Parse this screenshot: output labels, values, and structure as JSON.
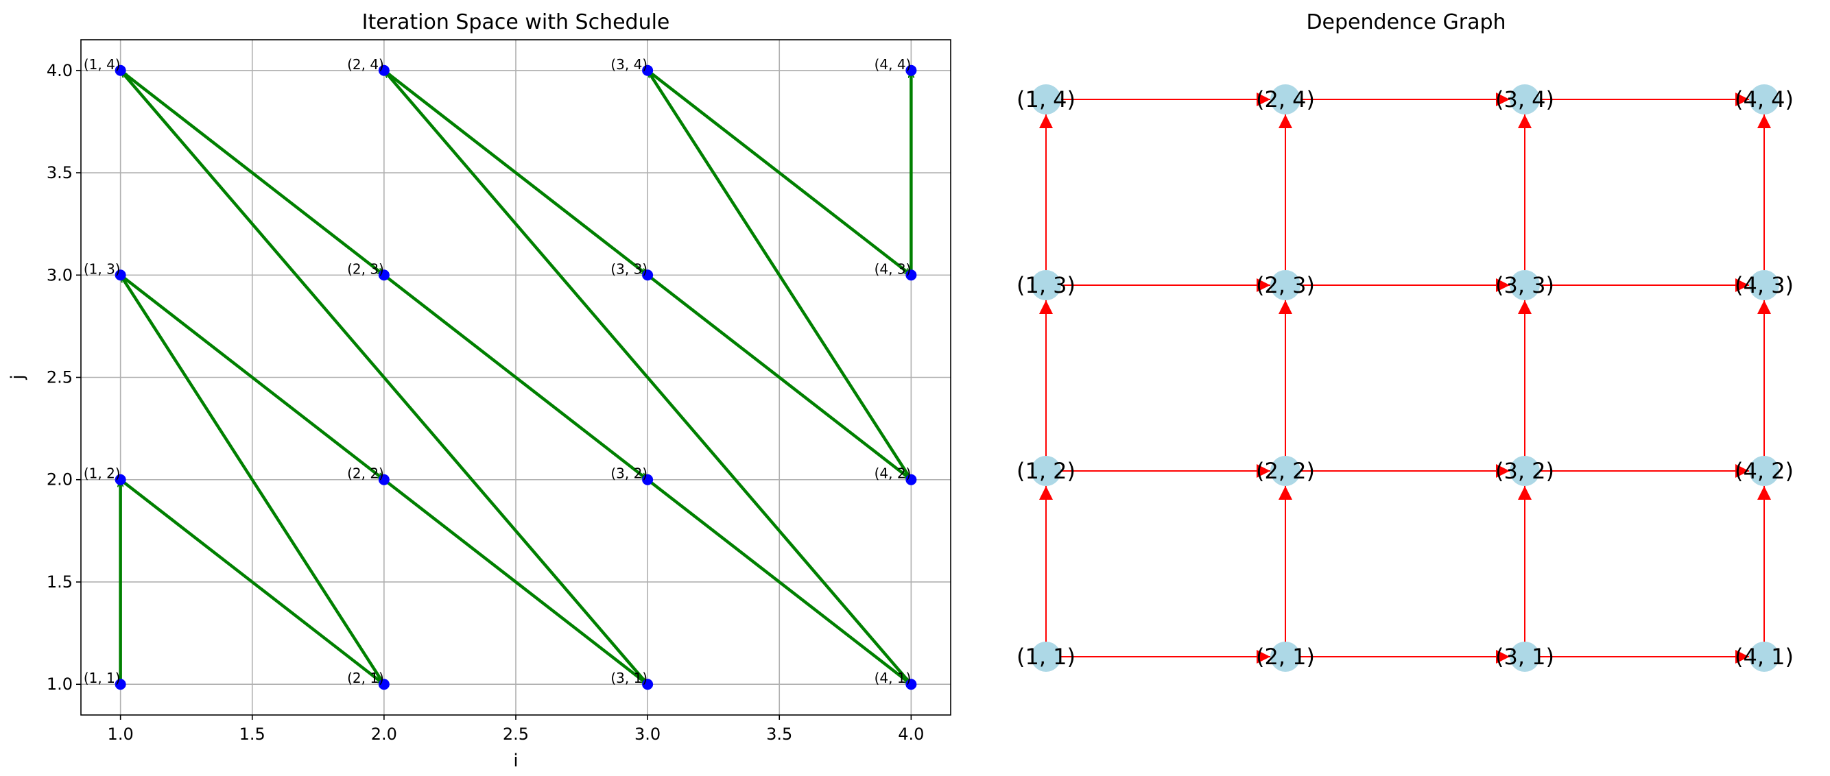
{
  "chart_data": [
    {
      "type": "scatter",
      "title": "Iteration Space with Schedule",
      "xlabel": "i",
      "ylabel": "j",
      "xlim": [
        0.85,
        4.15
      ],
      "ylim": [
        0.85,
        4.15
      ],
      "xticks": [
        1.0,
        1.5,
        2.0,
        2.5,
        3.0,
        3.5,
        4.0
      ],
      "yticks": [
        1.0,
        1.5,
        2.0,
        2.5,
        3.0,
        3.5,
        4.0
      ],
      "xtick_labels": [
        "1.0",
        "1.5",
        "2.0",
        "2.5",
        "3.0",
        "3.5",
        "4.0"
      ],
      "ytick_labels": [
        "1.0",
        "1.5",
        "2.0",
        "2.5",
        "3.0",
        "3.5",
        "4.0"
      ],
      "grid": true,
      "point_color": "#0000ff",
      "arrow_color": "#008000",
      "points": [
        {
          "x": 1,
          "y": 1,
          "label": "(1, 1)"
        },
        {
          "x": 1,
          "y": 2,
          "label": "(1, 2)"
        },
        {
          "x": 1,
          "y": 3,
          "label": "(1, 3)"
        },
        {
          "x": 1,
          "y": 4,
          "label": "(1, 4)"
        },
        {
          "x": 2,
          "y": 1,
          "label": "(2, 1)"
        },
        {
          "x": 2,
          "y": 2,
          "label": "(2, 2)"
        },
        {
          "x": 2,
          "y": 3,
          "label": "(2, 3)"
        },
        {
          "x": 2,
          "y": 4,
          "label": "(2, 4)"
        },
        {
          "x": 3,
          "y": 1,
          "label": "(3, 1)"
        },
        {
          "x": 3,
          "y": 2,
          "label": "(3, 2)"
        },
        {
          "x": 3,
          "y": 3,
          "label": "(3, 3)"
        },
        {
          "x": 3,
          "y": 4,
          "label": "(3, 4)"
        },
        {
          "x": 4,
          "y": 1,
          "label": "(4, 1)"
        },
        {
          "x": 4,
          "y": 2,
          "label": "(4, 2)"
        },
        {
          "x": 4,
          "y": 3,
          "label": "(4, 3)"
        },
        {
          "x": 4,
          "y": 4,
          "label": "(4, 4)"
        }
      ],
      "schedule": [
        [
          1,
          1
        ],
        [
          1,
          2
        ],
        [
          2,
          1
        ],
        [
          1,
          3
        ],
        [
          2,
          2
        ],
        [
          3,
          1
        ],
        [
          1,
          4
        ],
        [
          2,
          3
        ],
        [
          3,
          2
        ],
        [
          4,
          1
        ],
        [
          2,
          4
        ],
        [
          3,
          3
        ],
        [
          4,
          2
        ],
        [
          3,
          4
        ],
        [
          4,
          3
        ],
        [
          4,
          4
        ]
      ]
    },
    {
      "type": "graph",
      "title": "Dependence Graph",
      "node_color": "#add8e6",
      "edge_color": "#ff0000",
      "nodes": [
        {
          "i": 1,
          "j": 1,
          "label": "(1, 1)"
        },
        {
          "i": 1,
          "j": 2,
          "label": "(1, 2)"
        },
        {
          "i": 1,
          "j": 3,
          "label": "(1, 3)"
        },
        {
          "i": 1,
          "j": 4,
          "label": "(1, 4)"
        },
        {
          "i": 2,
          "j": 1,
          "label": "(2, 1)"
        },
        {
          "i": 2,
          "j": 2,
          "label": "(2, 2)"
        },
        {
          "i": 2,
          "j": 3,
          "label": "(2, 3)"
        },
        {
          "i": 2,
          "j": 4,
          "label": "(2, 4)"
        },
        {
          "i": 3,
          "j": 1,
          "label": "(3, 1)"
        },
        {
          "i": 3,
          "j": 2,
          "label": "(3, 2)"
        },
        {
          "i": 3,
          "j": 3,
          "label": "(3, 3)"
        },
        {
          "i": 3,
          "j": 4,
          "label": "(3, 4)"
        },
        {
          "i": 4,
          "j": 1,
          "label": "(4, 1)"
        },
        {
          "i": 4,
          "j": 2,
          "label": "(4, 2)"
        },
        {
          "i": 4,
          "j": 3,
          "label": "(4, 3)"
        },
        {
          "i": 4,
          "j": 4,
          "label": "(4, 4)"
        }
      ],
      "edges": [
        [
          [
            1,
            1
          ],
          [
            2,
            1
          ]
        ],
        [
          [
            2,
            1
          ],
          [
            3,
            1
          ]
        ],
        [
          [
            3,
            1
          ],
          [
            4,
            1
          ]
        ],
        [
          [
            1,
            2
          ],
          [
            2,
            2
          ]
        ],
        [
          [
            2,
            2
          ],
          [
            3,
            2
          ]
        ],
        [
          [
            3,
            2
          ],
          [
            4,
            2
          ]
        ],
        [
          [
            1,
            3
          ],
          [
            2,
            3
          ]
        ],
        [
          [
            2,
            3
          ],
          [
            3,
            3
          ]
        ],
        [
          [
            3,
            3
          ],
          [
            4,
            3
          ]
        ],
        [
          [
            1,
            4
          ],
          [
            2,
            4
          ]
        ],
        [
          [
            2,
            4
          ],
          [
            3,
            4
          ]
        ],
        [
          [
            3,
            4
          ],
          [
            4,
            4
          ]
        ],
        [
          [
            1,
            1
          ],
          [
            1,
            2
          ]
        ],
        [
          [
            1,
            2
          ],
          [
            1,
            3
          ]
        ],
        [
          [
            1,
            3
          ],
          [
            1,
            4
          ]
        ],
        [
          [
            2,
            1
          ],
          [
            2,
            2
          ]
        ],
        [
          [
            2,
            2
          ],
          [
            2,
            3
          ]
        ],
        [
          [
            2,
            3
          ],
          [
            2,
            4
          ]
        ],
        [
          [
            3,
            1
          ],
          [
            3,
            2
          ]
        ],
        [
          [
            3,
            2
          ],
          [
            3,
            3
          ]
        ],
        [
          [
            3,
            3
          ],
          [
            3,
            4
          ]
        ],
        [
          [
            4,
            1
          ],
          [
            4,
            2
          ]
        ],
        [
          [
            4,
            2
          ],
          [
            4,
            3
          ]
        ],
        [
          [
            4,
            3
          ],
          [
            4,
            4
          ]
        ]
      ]
    }
  ]
}
